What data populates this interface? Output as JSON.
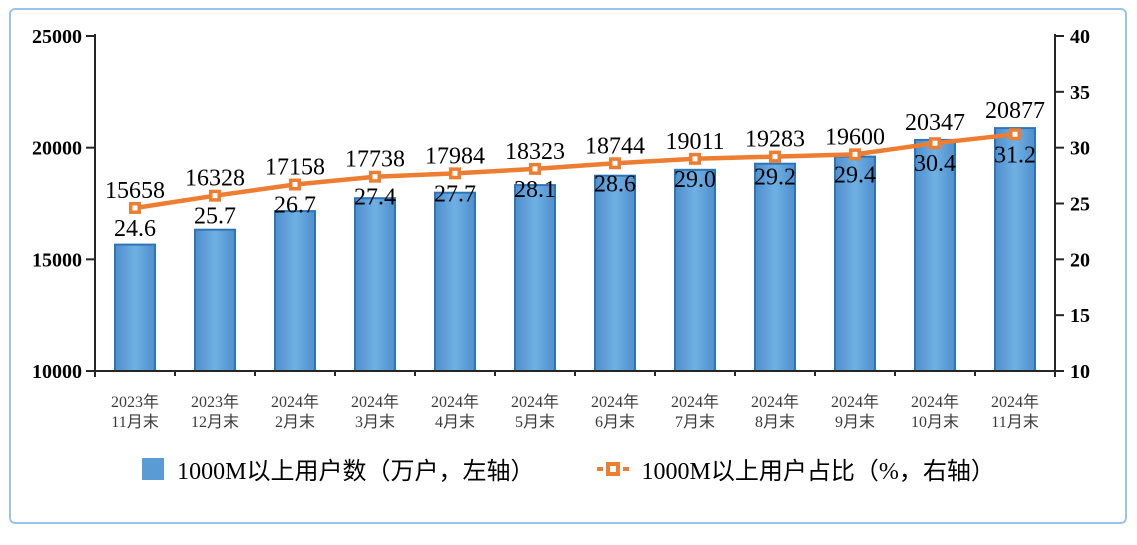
{
  "colors": {
    "bar_fill": "#5B9BD5",
    "bar_fill_light": "#6FB0E4",
    "bar_fill_dark": "#4E8FCE",
    "bar_stroke": "#2E75B6",
    "line": "#ED7D31",
    "marker_center": "#FFFFFF",
    "axis": "#262626",
    "frame_border": "#9DC3E6",
    "label_text": "#000000",
    "category_text": "#3A3A3A"
  },
  "chart_data": {
    "type": "bar",
    "title": "",
    "categories": [
      "2023年11月末",
      "2023年12月末",
      "2024年2月末",
      "2024年3月末",
      "2024年4月末",
      "2024年5月末",
      "2024年6月末",
      "2024年7月末",
      "2024年8月末",
      "2024年9月末",
      "2024年10月末",
      "2024年11月末"
    ],
    "series": [
      {
        "name": "1000M以上用户数（万户，左轴）",
        "type": "bar",
        "axis": "left",
        "values": [
          15658,
          16328,
          17158,
          17738,
          17984,
          18323,
          18744,
          19011,
          19283,
          19600,
          20347,
          20877
        ]
      },
      {
        "name": "1000M以上用户占比（%，右轴）",
        "type": "line",
        "axis": "right",
        "values": [
          24.6,
          25.7,
          26.7,
          27.4,
          27.7,
          28.1,
          28.6,
          29.0,
          29.2,
          29.4,
          30.4,
          31.2
        ]
      }
    ],
    "left_axis": {
      "label": "",
      "min": 10000,
      "max": 25000,
      "step": 5000,
      "ticks": [
        10000,
        15000,
        20000,
        25000
      ]
    },
    "right_axis": {
      "label": "",
      "min": 10,
      "max": 40,
      "step": 5,
      "ticks": [
        10,
        15,
        20,
        25,
        30,
        35,
        40
      ]
    },
    "grid": false,
    "legend_position": "bottom",
    "bar_value_decimals": 0,
    "line_value_decimals": 1
  }
}
